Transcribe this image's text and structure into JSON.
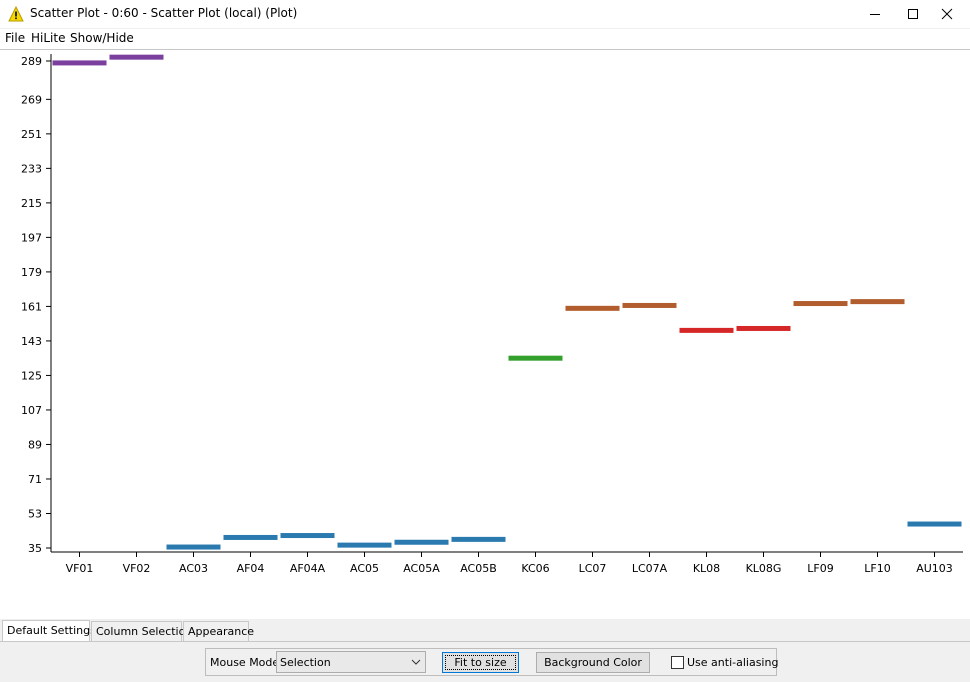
{
  "window": {
    "title": "Scatter Plot - 0:60 - Scatter Plot (local) (Plot)",
    "icon": "warning-triangle-icon",
    "controls": [
      "minimize-icon",
      "maximize-icon",
      "close-icon"
    ]
  },
  "menu": {
    "file": "File",
    "hilite": "HiLite",
    "show_hide": "Show/Hide"
  },
  "chart_data": {
    "type": "scatter",
    "categories": [
      "VF01",
      "VF02",
      "AC03",
      "AF04",
      "AF04A",
      "AC05",
      "AC05A",
      "AC05B",
      "KC06",
      "LC07",
      "LC07A",
      "KL08",
      "KL08G",
      "LF09",
      "LF10",
      "AU103"
    ],
    "values": [
      288,
      291,
      35.5,
      40.5,
      41.5,
      36.5,
      38,
      39.5,
      134,
      160,
      161.5,
      148.5,
      149.5,
      162.5,
      163.5,
      47.5
    ],
    "point_colors": [
      "#7b3f9e",
      "#7b3f9e",
      "#2a7ab0",
      "#2a7ab0",
      "#2a7ab0",
      "#2a7ab0",
      "#2a7ab0",
      "#2a7ab0",
      "#33a02c",
      "#b15d2e",
      "#b15d2e",
      "#d62728",
      "#d62728",
      "#b15d2e",
      "#b15d2e",
      "#2a7ab0"
    ],
    "y_ticks": [
      "35",
      "53",
      "71",
      "89",
      "107",
      "125",
      "143",
      "161",
      "179",
      "197",
      "215",
      "233",
      "251",
      "269",
      "289"
    ],
    "ylim": [
      35,
      289
    ],
    "grid": false,
    "legend": "none",
    "title": "",
    "xlabel": "",
    "ylabel": ""
  },
  "tabs": [
    "Default Settings",
    "Column Selection",
    "Appearance"
  ],
  "controls": {
    "mouse_mode_label": "Mouse Mode",
    "mouse_mode_value": "Selection",
    "fit_button": "Fit to size",
    "bg_button": "Background Color",
    "antialias_label": "Use anti-aliasing",
    "antialias_checked": false
  }
}
